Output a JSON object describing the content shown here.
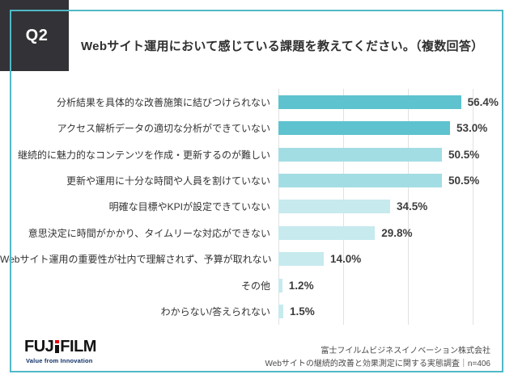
{
  "header": {
    "q_label": "Q2",
    "question": "Webサイト運用において感じている課題を教えてください。（複数回答）"
  },
  "chart_data": {
    "type": "bar",
    "orientation": "horizontal",
    "categories": [
      "分析結果を具体的な改善施策に結びつけられない",
      "アクセス解析データの適切な分析ができていない",
      "継続的に魅力的なコンテンツを作成・更新するのが難しい",
      "更新や運用に十分な時間や人員を割けていない",
      "明確な目標やKPIが設定できていない",
      "意思決定に時間がかかり、タイムリーな対応ができない",
      "Webサイト運用の重要性が社内で理解されず、予算が取れない",
      "その他",
      "わからない/答えられない"
    ],
    "values": [
      56.4,
      53.0,
      50.5,
      50.5,
      34.5,
      29.8,
      14.0,
      1.2,
      1.5
    ],
    "value_labels": [
      "56.4%",
      "53.0%",
      "50.5%",
      "50.5%",
      "34.5%",
      "29.8%",
      "14.0%",
      "1.2%",
      "1.5%"
    ],
    "bar_colors": [
      "#5ec3cf",
      "#5ec3cf",
      "#a3dde4",
      "#a3dde4",
      "#c7eaee",
      "#c7eaee",
      "#c7eaee",
      "#c7eaee",
      "#c7eaee"
    ],
    "xlim": [
      0,
      60
    ],
    "grid_ticks": [
      0,
      20,
      40,
      60
    ],
    "grid": true,
    "tick_labels_visible": false,
    "legend": "none"
  },
  "footer": {
    "logo_part1": "FUJ",
    "logo_part2": "FILM",
    "logo_tagline": "Value from Innovation",
    "source_line1": "富士フイルムビジネスイノベーション株式会社",
    "source_line2": "Webサイトの継続的改善と効果測定に関する実態調査｜n=406"
  },
  "colors": {
    "accent_teal": "#50b9c6",
    "q_square_bg": "#323237",
    "bar_dark": "#5ec3cf",
    "bar_medium": "#a3dde4",
    "bar_light": "#c7eaee",
    "logo_red": "#e60012",
    "tagline_navy": "#0d2f68"
  }
}
